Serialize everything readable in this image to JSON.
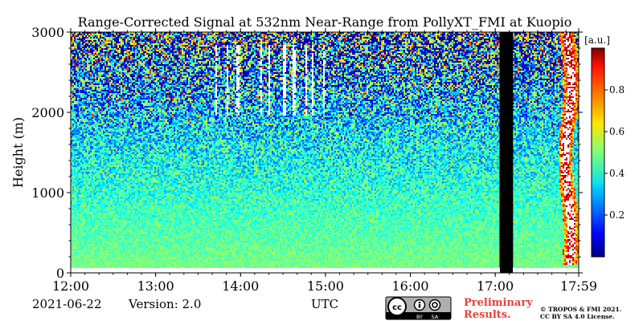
{
  "chart_data": {
    "type": "heatmap",
    "title": "Range-Corrected Signal at 532nm Near-Range from PollyXT_FMI at Kuopio",
    "xlabel": "UTC",
    "ylabel": "Height (m)",
    "x_ticks": [
      "12:00",
      "13:00",
      "14:00",
      "15:00",
      "16:00",
      "17:00",
      "17:59"
    ],
    "x_tick_hours": [
      12.0,
      13.0,
      14.0,
      15.0,
      16.0,
      17.0,
      17.983
    ],
    "xlim_hours": [
      12.0,
      17.983
    ],
    "y_ticks": [
      0,
      1000,
      2000,
      3000
    ],
    "ylim": [
      0,
      3000
    ],
    "colorbar": {
      "label": "[a.u.]",
      "ticks": [
        0.2,
        0.4,
        0.6,
        0.8
      ],
      "range": [
        0.0,
        1.0
      ],
      "colormap": "jet"
    },
    "no_data_period_hours": [
      17.05,
      17.21
    ],
    "no_data_below_m": 70,
    "features": [
      {
        "name": "cloud streaks",
        "x_hours": [
          13.6,
          15.0
        ],
        "height_m": [
          1950,
          2850
        ],
        "value": 1.0
      },
      {
        "name": "low cloud",
        "x_hours": [
          17.75,
          17.98
        ],
        "height_m": [
          100,
          3000
        ],
        "value": 0.9
      }
    ],
    "background_signal": {
      "near_surface": 0.5,
      "mid_level": 0.3,
      "upper_noise": 0.15
    }
  },
  "footer": {
    "date": "2021-06-22",
    "version": "Version: 2.0",
    "preliminary_line1": "Preliminary",
    "preliminary_line2": "Results.",
    "copyright_line1": "© TROPOS & FMI 2021.",
    "copyright_line2": "CC BY SA 4.0 License."
  },
  "license_badge": {
    "cc": "cc",
    "by": "BY",
    "sa": "SA"
  },
  "colors": {
    "no_data": "#000000",
    "preliminary_text": "#e8413a",
    "background": "#ffffff"
  }
}
